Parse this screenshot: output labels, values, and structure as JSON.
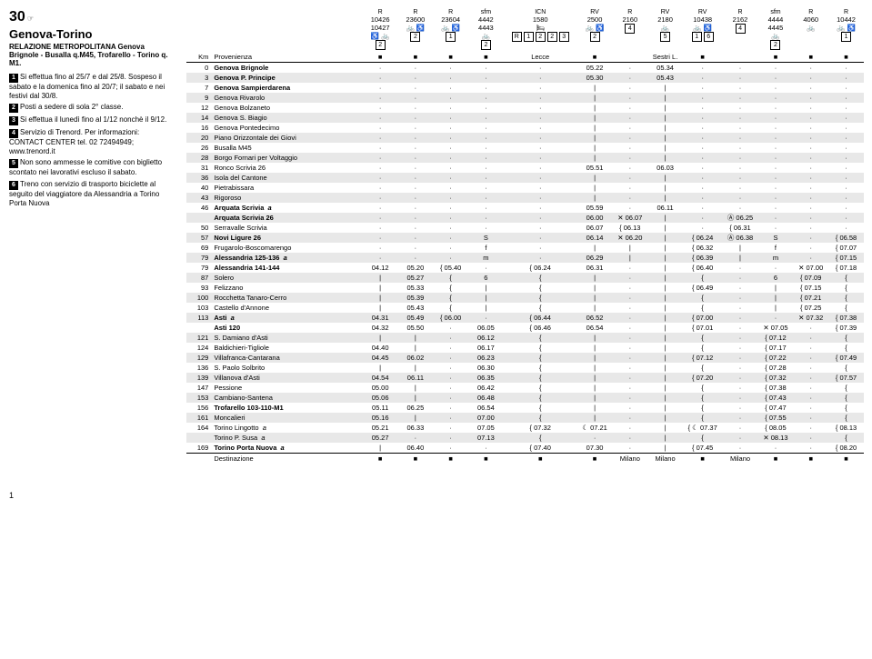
{
  "header": {
    "line_number": "30",
    "title": "Genova-Torino",
    "subtitle": "RELAZIONE METROPOLITANA Genova Brignole - Busalla q.M45, Trofarello - Torino q. M1."
  },
  "notes": [
    {
      "icon": "1",
      "text": "Si effettua fino al 25/7 e dal 25/8. Sospeso il sabato e la domenica fino al 20/7; il sabato e nei festivi dal 30/8."
    },
    {
      "icon": "2",
      "text": "Posti a sedere di sola 2° classe."
    },
    {
      "icon": "3",
      "text": "Si effettua il lunedì fino al 1/12 nonchè il 9/12."
    },
    {
      "icon": "4",
      "text": "Servizio di Trenord. Per informazioni: CONTACT CENTER tel. 02 72494949; www.trenord.it"
    },
    {
      "icon": "5",
      "text": "Non sono ammesse le comitive con biglietto scontato nei lavorativi escluso il sabato."
    },
    {
      "icon": "6",
      "text": "Treno con servizio di trasporto biciclette al seguito del viaggiatore da Alessandria a Torino Porta Nuova"
    }
  ],
  "trains": [
    {
      "num": "10426\n10427",
      "type": "R",
      "icons": "♿ 🚲",
      "boxes": [
        "2"
      ]
    },
    {
      "num": "23600",
      "type": "R",
      "icons": "🚲 ♿",
      "boxes": [
        "2"
      ]
    },
    {
      "num": "23604",
      "type": "R",
      "icons": "🚲 ♿",
      "boxes": [
        "1"
      ]
    },
    {
      "num": "4442\n4443",
      "type": "sfm",
      "icons": "🚲",
      "boxes": [
        "2"
      ]
    },
    {
      "num": "1580",
      "type": "ICN",
      "icons": "🛏",
      "boxes": [
        "R",
        "1",
        "2",
        "2",
        "3"
      ]
    },
    {
      "num": "2500",
      "type": "RV",
      "icons": "🚲 ♿",
      "boxes": [
        "2"
      ]
    },
    {
      "num": "2160",
      "type": "R",
      "icons": "",
      "boxes": [
        "4"
      ]
    },
    {
      "num": "2180",
      "type": "RV",
      "icons": "🚲",
      "boxes": [
        "5"
      ]
    },
    {
      "num": "10438",
      "type": "RV",
      "icons": "🚲 ♿",
      "boxes": [
        "1",
        "6"
      ]
    },
    {
      "num": "2162",
      "type": "R",
      "icons": "",
      "boxes": [
        "4"
      ]
    },
    {
      "num": "4444\n4445",
      "type": "sfm",
      "icons": "🚲",
      "boxes": [
        "2"
      ]
    },
    {
      "num": "4060",
      "type": "R",
      "icons": "🚲",
      "boxes": []
    },
    {
      "num": "10442",
      "type": "R",
      "icons": "🚲 ♿",
      "boxes": [
        "1"
      ]
    }
  ],
  "provenance": {
    "label": "Provenienza",
    "values": [
      "■",
      "■",
      "■",
      "■",
      "Lecce",
      "■",
      "",
      "Sestri L.",
      "■",
      "",
      "■",
      "■",
      "■"
    ]
  },
  "stations": [
    {
      "km": "0",
      "name": "Genova Brignole",
      "bold": true,
      "alt": false,
      "times": [
        "·",
        "·",
        "·",
        "·",
        "·",
        "05.22",
        "·",
        "05.34",
        "·",
        "·",
        "·",
        "·",
        "·"
      ]
    },
    {
      "km": "3",
      "name": "Genova P. Principe",
      "bold": true,
      "alt": true,
      "times": [
        "·",
        "·",
        "·",
        "·",
        "·",
        "05.30",
        "·",
        "05.43",
        "·",
        "·",
        "·",
        "·",
        "·"
      ]
    },
    {
      "km": "7",
      "name": "Genova Sampierdarena",
      "bold": true,
      "alt": false,
      "times": [
        "·",
        "·",
        "·",
        "·",
        "·",
        "|",
        "·",
        "|",
        "·",
        "·",
        "·",
        "·",
        "·"
      ]
    },
    {
      "km": "9",
      "name": "Genova Rivarolo",
      "bold": false,
      "alt": true,
      "times": [
        "·",
        "·",
        "·",
        "·",
        "·",
        "|",
        "·",
        "|",
        "·",
        "·",
        "·",
        "·",
        "·"
      ]
    },
    {
      "km": "12",
      "name": "Genova Bolzaneto",
      "bold": false,
      "alt": false,
      "times": [
        "·",
        "·",
        "·",
        "·",
        "·",
        "|",
        "·",
        "|",
        "·",
        "·",
        "·",
        "·",
        "·"
      ]
    },
    {
      "km": "14",
      "name": "Genova S. Biagio",
      "bold": false,
      "alt": true,
      "times": [
        "·",
        "·",
        "·",
        "·",
        "·",
        "|",
        "·",
        "|",
        "·",
        "·",
        "·",
        "·",
        "·"
      ]
    },
    {
      "km": "16",
      "name": "Genova Pontedecimo",
      "bold": false,
      "alt": false,
      "times": [
        "·",
        "·",
        "·",
        "·",
        "·",
        "|",
        "·",
        "|",
        "·",
        "·",
        "·",
        "·",
        "·"
      ]
    },
    {
      "km": "20",
      "name": "Piano Orizzontale dei Giovi",
      "bold": false,
      "alt": true,
      "times": [
        "·",
        "·",
        "·",
        "·",
        "·",
        "|",
        "·",
        "|",
        "·",
        "·",
        "·",
        "·",
        "·"
      ]
    },
    {
      "km": "26",
      "name": "Busalla M45",
      "bold": false,
      "alt": false,
      "times": [
        "·",
        "·",
        "·",
        "·",
        "·",
        "|",
        "·",
        "|",
        "·",
        "·",
        "·",
        "·",
        "·"
      ]
    },
    {
      "km": "28",
      "name": "Borgo Fornari per Voltaggio",
      "bold": false,
      "alt": true,
      "times": [
        "·",
        "·",
        "·",
        "·",
        "·",
        "|",
        "·",
        "|",
        "·",
        "·",
        "·",
        "·",
        "·"
      ]
    },
    {
      "km": "31",
      "name": "Ronco Scrivia 26",
      "bold": false,
      "alt": false,
      "times": [
        "·",
        "·",
        "·",
        "·",
        "·",
        "05.51",
        "·",
        "06.03",
        "·",
        "·",
        "·",
        "·",
        "·"
      ]
    },
    {
      "km": "36",
      "name": "Isola del Cantone",
      "bold": false,
      "alt": true,
      "times": [
        "·",
        "·",
        "·",
        "·",
        "·",
        "|",
        "·",
        "|",
        "·",
        "·",
        "·",
        "·",
        "·"
      ]
    },
    {
      "km": "40",
      "name": "Pietrabissara",
      "bold": false,
      "alt": false,
      "times": [
        "·",
        "·",
        "·",
        "·",
        "·",
        "|",
        "·",
        "|",
        "·",
        "·",
        "·",
        "·",
        "·"
      ]
    },
    {
      "km": "43",
      "name": "Rigoroso",
      "bold": false,
      "alt": true,
      "times": [
        "·",
        "·",
        "·",
        "·",
        "·",
        "|",
        "·",
        "|",
        "·",
        "·",
        "·",
        "·",
        "·"
      ]
    },
    {
      "km": "46",
      "name": "Arquata Scrivia",
      "bold": true,
      "alt": false,
      "suffix": "a",
      "times": [
        "·",
        "·",
        "·",
        "·",
        "·",
        "05.59",
        "·",
        "06.11",
        "·",
        "·",
        "·",
        "·",
        "·"
      ]
    },
    {
      "km": "",
      "name": "Arquata Scrivia 26",
      "bold": true,
      "alt": true,
      "times": [
        "·",
        "·",
        "·",
        "·",
        "·",
        "06.00",
        "✕ 06.07",
        "|",
        "·",
        "Ⓐ 06.25",
        "·",
        "·",
        "·"
      ]
    },
    {
      "km": "50",
      "name": "Serravalle Scrivia",
      "bold": false,
      "alt": false,
      "times": [
        "·",
        "·",
        "·",
        "·",
        "·",
        "06.07",
        "{ 06.13",
        "|",
        "·",
        "{ 06.31",
        "·",
        "·",
        "·"
      ]
    },
    {
      "km": "57",
      "name": "Novi Ligure 26",
      "bold": true,
      "alt": true,
      "times": [
        "·",
        "·",
        "·",
        "S",
        "·",
        "06.14",
        "✕ 06.20",
        "|",
        "{ 06.24",
        "Ⓐ 06.38",
        "S",
        "·",
        "{ 06.58"
      ]
    },
    {
      "km": "69",
      "name": "Frugarolo-Boscomarengo",
      "bold": false,
      "alt": false,
      "times": [
        "·",
        "·",
        "·",
        "f",
        "·",
        "|",
        "|",
        "|",
        "{ 06.32",
        "|",
        "f",
        "·",
        "{ 07.07"
      ]
    },
    {
      "km": "79",
      "name": "Alessandria 125-136",
      "bold": true,
      "alt": true,
      "suffix": "a",
      "times": [
        "·",
        "·",
        "·",
        "m",
        "·",
        "06.29",
        "|",
        "|",
        "{ 06.39",
        "|",
        "m",
        "·",
        "{ 07.15"
      ]
    },
    {
      "km": "79",
      "name": "Alessandria 141-144",
      "bold": true,
      "alt": false,
      "times": [
        "04.12",
        "05.20",
        "{ 05.40",
        "·",
        "{ 06.24",
        "06.31",
        "·",
        "|",
        "{ 06.40",
        "·",
        "·",
        "✕ 07.00",
        "{ 07.18"
      ]
    },
    {
      "km": "87",
      "name": "Solero",
      "bold": false,
      "alt": true,
      "times": [
        "|",
        "05.27",
        "{",
        "6",
        "{",
        "|",
        "·",
        "|",
        "{",
        "·",
        "6",
        "{ 07.09",
        "{"
      ]
    },
    {
      "km": "93",
      "name": "Felizzano",
      "bold": false,
      "alt": false,
      "times": [
        "|",
        "05.33",
        "{",
        "|",
        "{",
        "|",
        "·",
        "|",
        "{ 06.49",
        "·",
        "|",
        "{ 07.15",
        "{"
      ]
    },
    {
      "km": "100",
      "name": "Rocchetta Tanaro-Cerro",
      "bold": false,
      "alt": true,
      "times": [
        "|",
        "05.39",
        "{",
        "|",
        "{",
        "|",
        "·",
        "|",
        "{",
        "·",
        "|",
        "{ 07.21",
        "{"
      ]
    },
    {
      "km": "103",
      "name": "Castello d'Annone",
      "bold": false,
      "alt": false,
      "times": [
        "|",
        "05.43",
        "{",
        "|",
        "{",
        "|",
        "·",
        "|",
        "{",
        "·",
        "|",
        "{ 07.25",
        "{"
      ]
    },
    {
      "km": "113",
      "name": "Asti",
      "bold": true,
      "alt": true,
      "suffix": "a",
      "times": [
        "04.31",
        "05.49",
        "{ 06.00",
        "·",
        "{ 06.44",
        "06.52",
        "·",
        "|",
        "{ 07.00",
        "·",
        "·",
        "✕ 07.32",
        "{ 07.38"
      ]
    },
    {
      "km": "",
      "name": "Asti 120",
      "bold": true,
      "alt": false,
      "times": [
        "04.32",
        "05.50",
        "·",
        "06.05",
        "{ 06.46",
        "06.54",
        "·",
        "|",
        "{ 07.01",
        "·",
        "✕ 07.05",
        "·",
        "{ 07.39"
      ]
    },
    {
      "km": "121",
      "name": "S. Damiano d'Asti",
      "bold": false,
      "alt": true,
      "times": [
        "|",
        "|",
        "·",
        "06.12",
        "{",
        "|",
        "·",
        "|",
        "{",
        "·",
        "{ 07.12",
        "·",
        "{"
      ]
    },
    {
      "km": "124",
      "name": "Baldichieri-Tigliole",
      "bold": false,
      "alt": false,
      "times": [
        "04.40",
        "|",
        "·",
        "06.17",
        "{",
        "|",
        "·",
        "|",
        "{",
        "·",
        "{ 07.17",
        "·",
        "{"
      ]
    },
    {
      "km": "129",
      "name": "Villafranca-Cantarana",
      "bold": false,
      "alt": true,
      "times": [
        "04.45",
        "06.02",
        "·",
        "06.23",
        "{",
        "|",
        "·",
        "|",
        "{ 07.12",
        "·",
        "{ 07.22",
        "·",
        "{ 07.49"
      ]
    },
    {
      "km": "136",
      "name": "S. Paolo Solbrito",
      "bold": false,
      "alt": false,
      "times": [
        "|",
        "|",
        "·",
        "06.30",
        "{",
        "|",
        "·",
        "|",
        "{",
        "·",
        "{ 07.28",
        "·",
        "{"
      ]
    },
    {
      "km": "139",
      "name": "Villanova d'Asti",
      "bold": false,
      "alt": true,
      "times": [
        "04.54",
        "06.11",
        "·",
        "06.35",
        "{",
        "|",
        "·",
        "|",
        "{ 07.20",
        "·",
        "{ 07.32",
        "·",
        "{ 07.57"
      ]
    },
    {
      "km": "147",
      "name": "Pessione",
      "bold": false,
      "alt": false,
      "times": [
        "05.00",
        "|",
        "·",
        "06.42",
        "{",
        "|",
        "·",
        "|",
        "{",
        "·",
        "{ 07.38",
        "·",
        "{"
      ]
    },
    {
      "km": "153",
      "name": "Cambiano-Santena",
      "bold": false,
      "alt": true,
      "times": [
        "05.06",
        "|",
        "·",
        "06.48",
        "{",
        "|",
        "·",
        "|",
        "{",
        "·",
        "{ 07.43",
        "·",
        "{"
      ]
    },
    {
      "km": "156",
      "name": "Trofarello 103-110-M1",
      "bold": true,
      "alt": false,
      "times": [
        "05.11",
        "06.25",
        "·",
        "06.54",
        "{",
        "|",
        "·",
        "|",
        "{",
        "·",
        "{ 07.47",
        "·",
        "{"
      ]
    },
    {
      "km": "161",
      "name": "Moncalieri",
      "bold": false,
      "alt": true,
      "times": [
        "05.16",
        "|",
        "·",
        "07.00",
        "{",
        "|",
        "·",
        "|",
        "{",
        "·",
        "{ 07.55",
        "·",
        "{"
      ]
    },
    {
      "km": "164",
      "name": "Torino Lingotto",
      "bold": false,
      "alt": false,
      "suffix": "a",
      "times": [
        "05.21",
        "06.33",
        "·",
        "07.05",
        "{ 07.32",
        "☾ 07.21",
        "·",
        "|",
        "{ ☾ 07.37",
        "·",
        "{ 08.05",
        "·",
        "{ 08.13"
      ]
    },
    {
      "km": "",
      "name": "Torino P. Susa",
      "bold": false,
      "alt": true,
      "suffix": "a",
      "times": [
        "05.27",
        "·",
        "·",
        "07.13",
        "{",
        "·",
        "·",
        "|",
        "{",
        "·",
        "✕ 08.13",
        "·",
        "{"
      ]
    },
    {
      "km": "169",
      "name": "Torino Porta Nuova",
      "bold": true,
      "alt": false,
      "suffix": "a",
      "times": [
        "|",
        "06.40",
        "·",
        "·",
        "{ 07.40",
        "07.30",
        "·",
        "|",
        "{ 07.45",
        "·",
        "·",
        "·",
        "{ 08.20"
      ]
    }
  ],
  "destination": {
    "label": "Destinazione",
    "values": [
      "■",
      "■",
      "■",
      "■",
      "■",
      "■",
      "Milano",
      "Milano",
      "■",
      "Milano",
      "■",
      "■",
      "■"
    ]
  }
}
